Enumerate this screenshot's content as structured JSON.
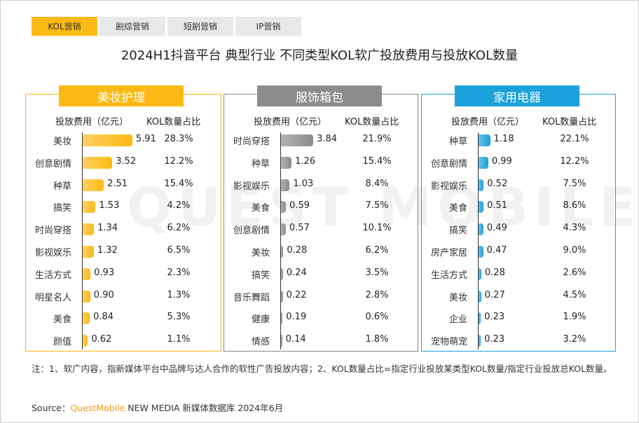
{
  "tabs": [
    {
      "label": "KOL营销",
      "active": true
    },
    {
      "label": "剧综营销"
    },
    {
      "label": "短剧营销"
    },
    {
      "label": "IP营销"
    }
  ],
  "title": "2024H1抖音平台 典型行业 不同类型KOL软广投放费用与投放KOL数量",
  "watermark": "QUEST MOBILE",
  "chart_data": [
    {
      "type": "bar",
      "title": "美妆护理",
      "color": "#fdb913",
      "col_headers": [
        "投放费用（亿元）",
        "KOL数量占比"
      ],
      "categories": [
        "美妆",
        "创意剧情",
        "种草",
        "搞笑",
        "时尚穿搭",
        "影视娱乐",
        "生活方式",
        "明星名人",
        "美食",
        "颜值"
      ],
      "values": [
        5.91,
        3.52,
        2.51,
        1.53,
        1.34,
        1.32,
        0.93,
        0.9,
        0.84,
        0.62
      ],
      "share": [
        "28.3%",
        "12.2%",
        "15.4%",
        "4.2%",
        "6.2%",
        "6.5%",
        "2.3%",
        "1.3%",
        "5.3%",
        "1.1%"
      ]
    },
    {
      "type": "bar",
      "title": "服饰箱包",
      "color": "#8c8c8c",
      "col_headers": [
        "投放费用（亿元）",
        "KOL数量占比"
      ],
      "categories": [
        "时尚穿搭",
        "种草",
        "影视娱乐",
        "美食",
        "创意剧情",
        "美妆",
        "搞笑",
        "音乐舞蹈",
        "健康",
        "情感"
      ],
      "values": [
        3.84,
        1.26,
        1.03,
        0.59,
        0.57,
        0.28,
        0.24,
        0.22,
        0.19,
        0.14
      ],
      "share": [
        "21.9%",
        "15.4%",
        "8.4%",
        "7.5%",
        "10.1%",
        "6.2%",
        "3.5%",
        "2.8%",
        "0.6%",
        "1.8%"
      ]
    },
    {
      "type": "bar",
      "title": "家用电器",
      "color": "#1ba1dc",
      "col_headers": [
        "投放费用（亿元）",
        "KOL数量占比"
      ],
      "categories": [
        "种草",
        "创意剧情",
        "影视娱乐",
        "美食",
        "搞笑",
        "房产家居",
        "生活方式",
        "美妆",
        "企业",
        "宠物萌宠"
      ],
      "values": [
        1.18,
        0.99,
        0.52,
        0.51,
        0.49,
        0.47,
        0.28,
        0.27,
        0.23,
        0.23
      ],
      "share": [
        "22.1%",
        "12.2%",
        "7.5%",
        "8.6%",
        "4.3%",
        "9.0%",
        "2.6%",
        "4.5%",
        "1.9%",
        "3.2%"
      ]
    }
  ],
  "note": "注：1、软广内容，指新媒体平台中品牌与达人合作的软性广告投放内容；2、KOL数量占比=指定行业投放某类型KOL数量/指定行业投放总KOL数量。",
  "source": {
    "label": "Source：",
    "brand": "QuestMobile",
    "rest": " NEW MEDIA 新媒体数据库 2024年6月"
  }
}
